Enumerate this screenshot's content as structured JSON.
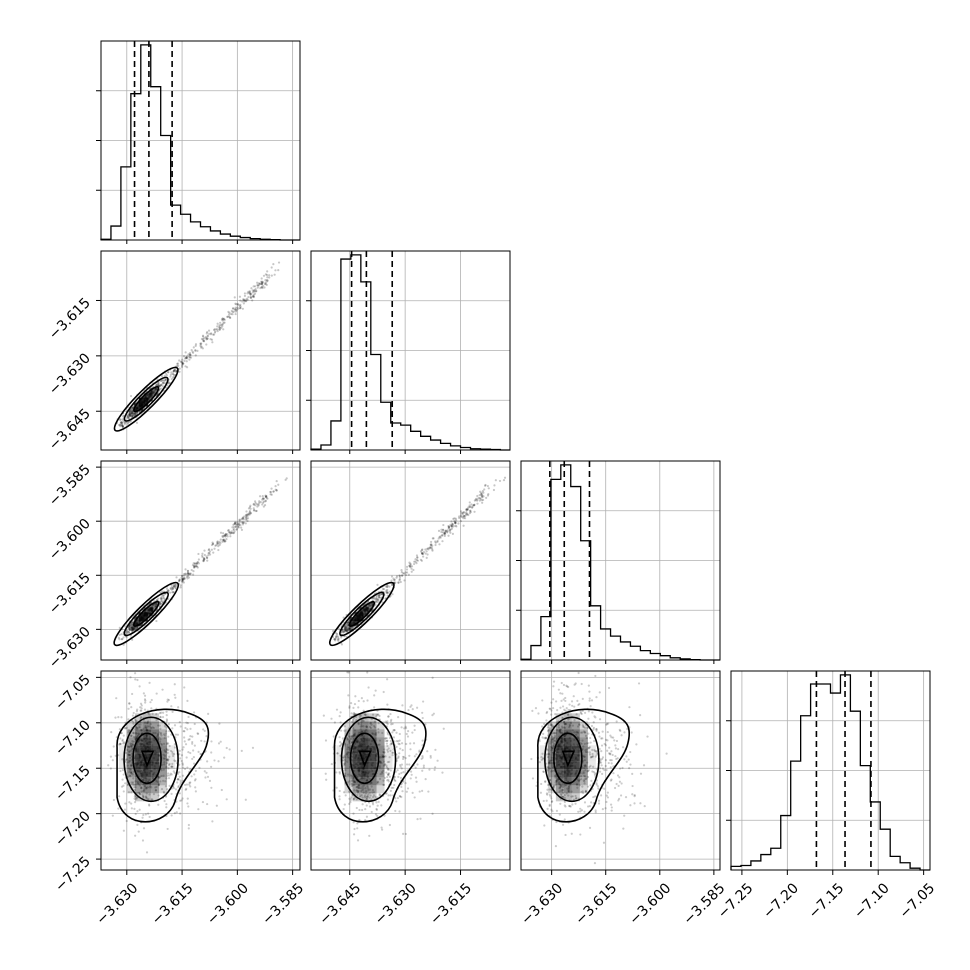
{
  "chart_data": {
    "type": "corner",
    "grid": true,
    "params": [
      {
        "range": [
          -3.637,
          -3.583
        ],
        "ticks": [
          -3.63,
          -3.615,
          -3.6,
          -3.585
        ],
        "tick_labels": [
          "−3.630",
          "−3.615",
          "−3.600",
          "−3.585"
        ],
        "quantiles": [
          -3.6279,
          -3.624,
          -3.6177
        ],
        "hist_edges_start": -3.637,
        "hist_bin_width": 0.0027,
        "hist_counts": [
          2,
          40,
          210,
          420,
          560,
          440,
          300,
          100,
          74,
          52,
          38,
          26,
          17,
          11,
          7,
          4,
          2,
          1,
          0,
          0
        ]
      },
      {
        "range": [
          -3.6555,
          -3.6016
        ],
        "ticks": [
          -3.645,
          -3.63,
          -3.615
        ],
        "tick_labels": [
          "−3.645",
          "−3.630",
          "−3.615"
        ],
        "quantiles": [
          -3.6445,
          -3.6405,
          -3.6335
        ],
        "hist_edges_start": -3.6555,
        "hist_bin_width": 0.0027,
        "hist_counts": [
          2,
          12,
          70,
          460,
          470,
          405,
          230,
          115,
          65,
          60,
          45,
          33,
          24,
          16,
          10,
          6,
          3,
          2,
          1,
          0
        ]
      },
      {
        "range": [
          -3.6385,
          -3.5833
        ],
        "ticks": [
          -3.63,
          -3.615,
          -3.6,
          -3.585
        ],
        "tick_labels": [
          "−3.630",
          "−3.615",
          "−3.600",
          "−3.585"
        ],
        "quantiles": [
          -3.6305,
          -3.6265,
          -3.6195
        ],
        "hist_edges_start": -3.6385,
        "hist_bin_width": 0.00276,
        "hist_counts": [
          2,
          40,
          120,
          500,
          540,
          480,
          330,
          150,
          86,
          66,
          50,
          38,
          26,
          18,
          12,
          6,
          3,
          1,
          0,
          0
        ]
      },
      {
        "range": [
          -7.262,
          -7.043
        ],
        "ticks": [
          -7.25,
          -7.2,
          -7.15,
          -7.1,
          -7.05
        ],
        "tick_labels": [
          "−7.25",
          "−7.20",
          "−7.15",
          "−7.10",
          "−7.05"
        ],
        "quantiles": [
          -7.168,
          -7.1365,
          -7.108
        ],
        "hist_edges_start": -7.262,
        "hist_bin_width": 0.01095,
        "hist_counts": [
          4,
          5,
          10,
          17,
          24,
          60,
          120,
          170,
          205,
          205,
          195,
          215,
          175,
          115,
          75,
          45,
          15,
          8,
          2,
          0
        ]
      }
    ],
    "pairs": [
      {
        "row": 1,
        "col": 0,
        "corr": 0.995,
        "center": [
          -3.6255,
          -3.6425
        ],
        "cloud": [
          0.0011,
          0.0011
        ],
        "shape": "diagonal"
      },
      {
        "row": 2,
        "col": 0,
        "corr": 0.995,
        "center": [
          -3.6255,
          -3.6265
        ],
        "cloud": [
          0.0011,
          0.0011
        ],
        "shape": "diagonal"
      },
      {
        "row": 2,
        "col": 1,
        "corr": 0.995,
        "center": [
          -3.6425,
          -3.6265
        ],
        "cloud": [
          0.0011,
          0.0011
        ],
        "shape": "diagonal"
      },
      {
        "row": 3,
        "col": 0,
        "corr": 0.05,
        "center": [
          -3.6245,
          -7.138
        ],
        "cloud": [
          0.0044,
          0.026
        ],
        "shape": "blob"
      },
      {
        "row": 3,
        "col": 1,
        "corr": 0.05,
        "center": [
          -3.641,
          -7.138
        ],
        "cloud": [
          0.0044,
          0.026
        ],
        "shape": "blob"
      },
      {
        "row": 3,
        "col": 2,
        "corr": 0.05,
        "center": [
          -3.6255,
          -7.138
        ],
        "cloud": [
          0.0044,
          0.026
        ],
        "shape": "blob"
      }
    ]
  }
}
